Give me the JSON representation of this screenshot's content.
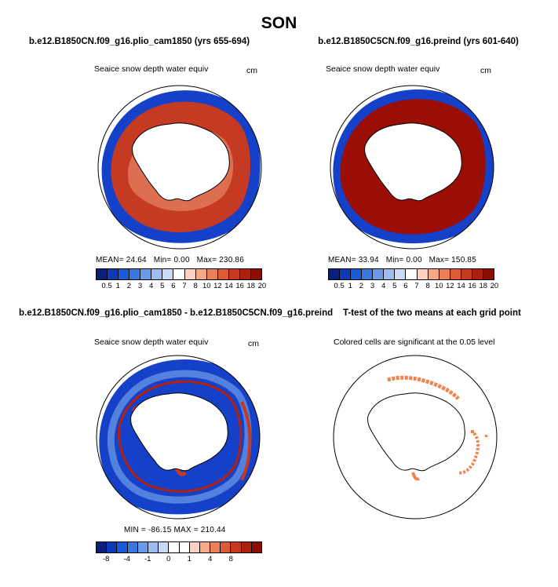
{
  "season": "SON",
  "panels": [
    {
      "title": "b.e12.B1850CN.f09_g16.plio_cam1850 (yrs 655-694)",
      "subtitle": "Seaice snow depth water equiv",
      "unit": "cm",
      "stats": {
        "mean": "24.64",
        "min": "0.00",
        "max": "230.86"
      }
    },
    {
      "title": "b.e12.B1850C5CN.f09_g16.preind (yrs 601-640)",
      "subtitle": "Seaice snow depth water equiv",
      "unit": "cm",
      "stats": {
        "mean": "33.94",
        "min": "0.00",
        "max": "150.85"
      }
    },
    {
      "title": "b.e12.B1850CN.f09_g16.plio_cam1850 - b.e12.B1850C5CN.f09_g16.preind",
      "subtitle": "Seaice snow depth water equiv",
      "unit": "cm",
      "stats": {
        "min": "-86.15",
        "max": "210.44"
      }
    },
    {
      "title": "T-test of the two means at each grid point",
      "subtitle": "Colored cells are significant at the 0.05 level"
    }
  ],
  "labels": {
    "mean": "MEAN=",
    "min": "Min=",
    "max": "Max=",
    "diff_min": "MIN =",
    "diff_max": "MAX ="
  },
  "colorbar_abs": {
    "colors": [
      "#08207a",
      "#0c3ab8",
      "#1a5ad6",
      "#3a78e0",
      "#6a9ae8",
      "#9dbcf0",
      "#c8daf6",
      "#ffffff",
      "#fbd2c2",
      "#f4a987",
      "#ea7f58",
      "#dc5a34",
      "#c8381e",
      "#ae1f10",
      "#8c0d04"
    ],
    "ticks": [
      "0.5",
      "1",
      "2",
      "3",
      "4",
      "5",
      "6",
      "7",
      "8",
      "10",
      "12",
      "14",
      "16",
      "18",
      "20"
    ]
  },
  "colorbar_diff": {
    "colors": [
      "#08207a",
      "#0c3ab8",
      "#1a5ad6",
      "#3a78e0",
      "#6a9ae8",
      "#9dbcf0",
      "#c8daf6",
      "#ffffff",
      "#ffffff",
      "#fbd2c2",
      "#f4a987",
      "#ea7f58",
      "#dc5a34",
      "#c8381e",
      "#ae1f10",
      "#8c0d04"
    ],
    "ticks": [
      "-8",
      "",
      "-4",
      "",
      "-1",
      "",
      "0",
      "",
      "1",
      "",
      "4",
      "",
      "8"
    ]
  },
  "map_colors": {
    "red": "#9a0e06",
    "blue": "#1540c8",
    "light_blue": "#6f9ce6",
    "sig_orange": "#f0834e"
  }
}
